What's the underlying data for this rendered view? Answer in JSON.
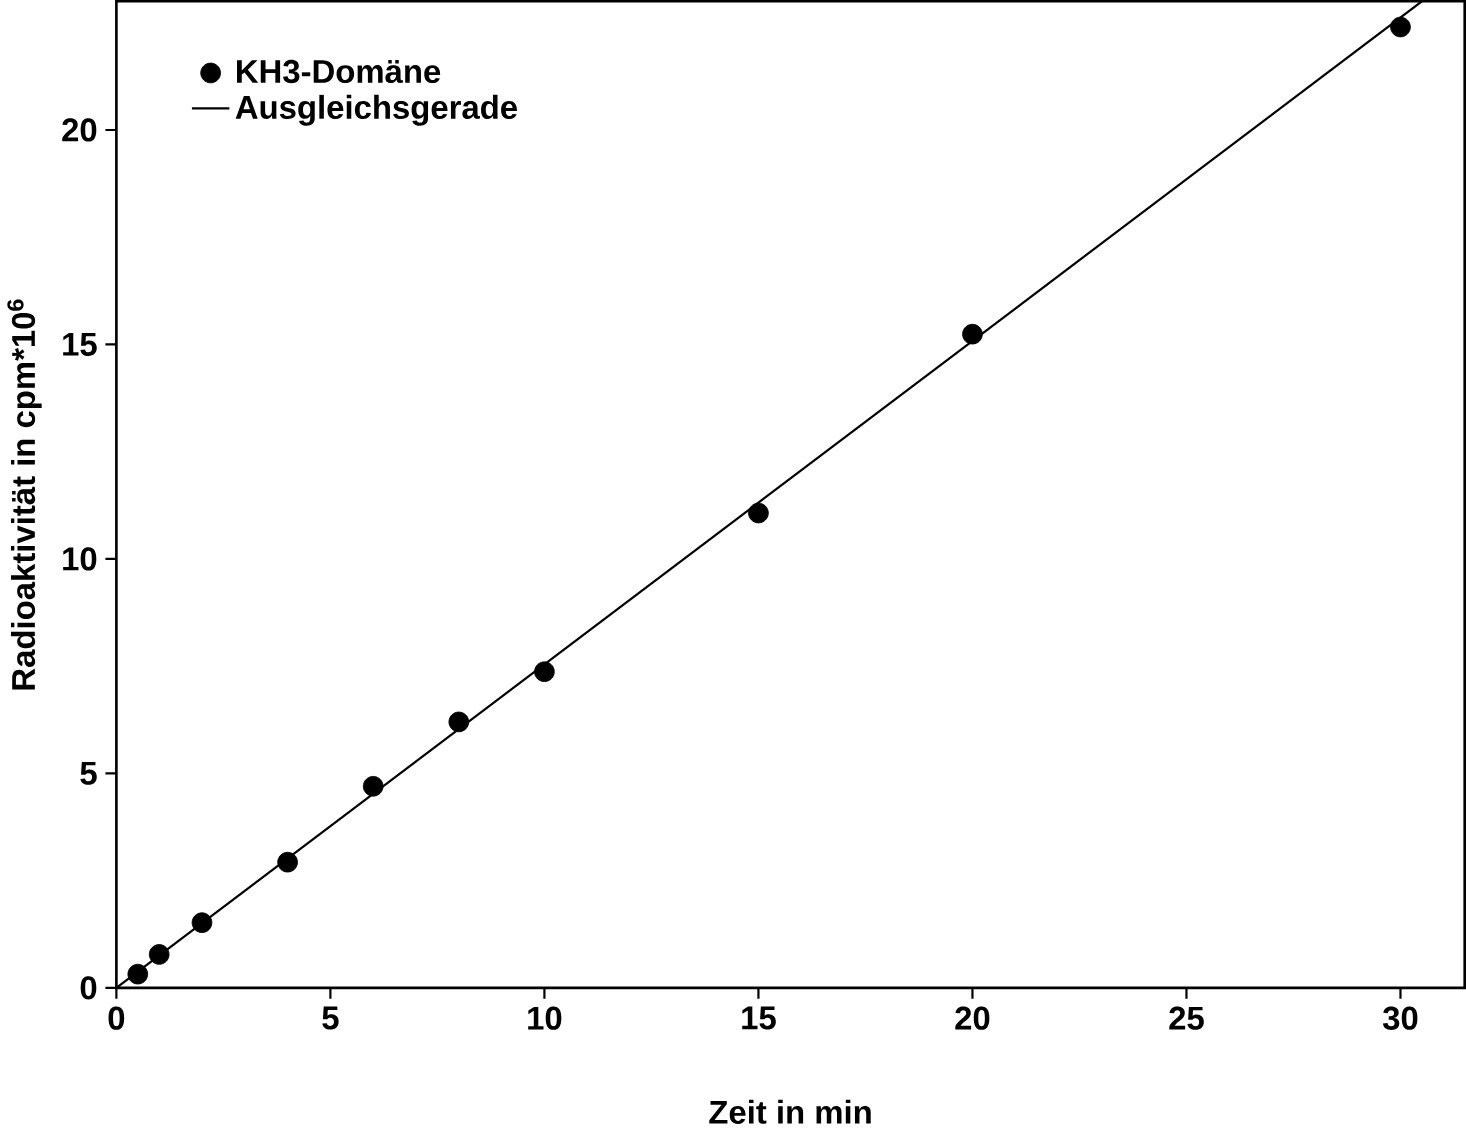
{
  "chart_data": {
    "type": "scatter",
    "xlabel": "Zeit in min",
    "ylabel": "Radioaktivität in cpm*10$^{6}$",
    "xlim": [
      0,
      31.5
    ],
    "ylim": [
      0,
      23
    ],
    "xticks": [
      0,
      5,
      10,
      15,
      20,
      25,
      30
    ],
    "yticks": [
      0,
      5,
      10,
      15,
      20
    ],
    "grid": false,
    "legend": "top left",
    "series": [
      {
        "name": "KH3-Domäne",
        "marker": "circle",
        "color": "#000000",
        "x": [
          0.5,
          1,
          2,
          4,
          6,
          8,
          10,
          15,
          20,
          30
        ],
        "values": [
          0.32,
          0.78,
          1.52,
          2.93,
          4.7,
          6.2,
          7.37,
          11.07,
          15.24,
          22.4
        ]
      },
      {
        "name": "Ausgleichsgerade",
        "type": "line",
        "marker": "none",
        "line_style": "solid",
        "color": "#000000",
        "x": [
          0,
          30.5
        ],
        "values": [
          0,
          23
        ]
      }
    ]
  }
}
